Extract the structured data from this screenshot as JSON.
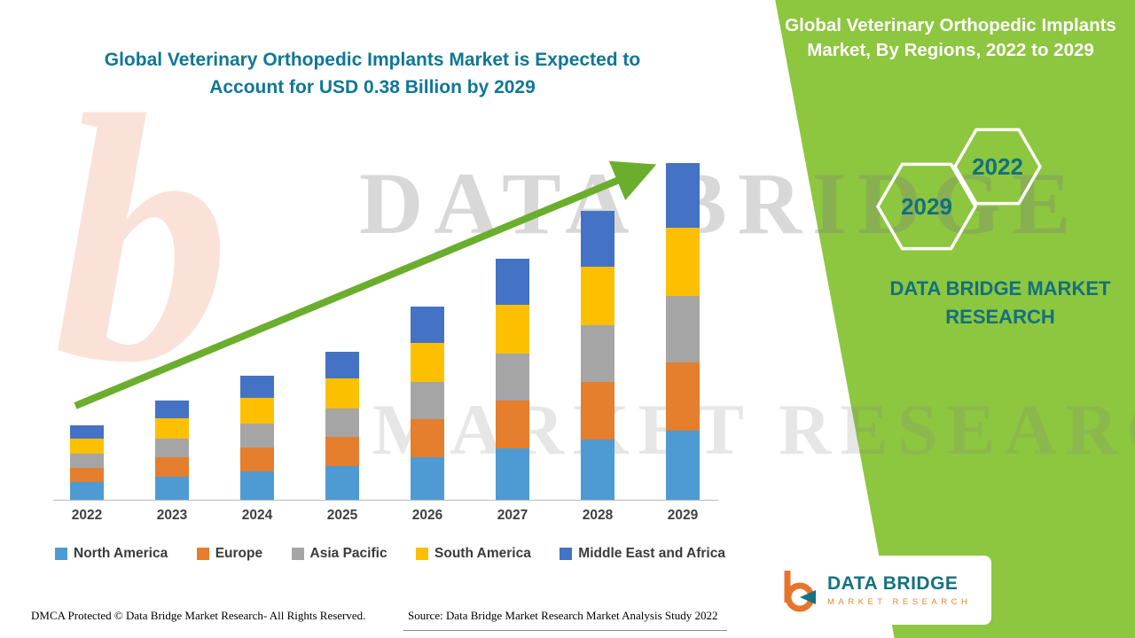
{
  "page": {
    "title_line1": "Global Veterinary Orthopedic Implants Market is Expected to",
    "title_line2": "Account for USD 0.38 Billion by 2029"
  },
  "side_panel": {
    "heading": "Global Veterinary Orthopedic Implants Market, By Regions, 2022 to 2029",
    "hexagon_left": "2029",
    "hexagon_right": "2022",
    "brand_line1": "DATA BRIDGE MARKET",
    "brand_line2": "RESEARCH",
    "bg_color": "#8dc63f",
    "accent_teal": "#12707f"
  },
  "watermark": {
    "letter_b": "b",
    "line1": "DATA BRIDGE",
    "line2": "MARKET RESEARCH"
  },
  "logo": {
    "name": "DATA BRIDGE",
    "subtitle": "MARKET RESEARCH"
  },
  "footer": {
    "dmca": "DMCA Protected © Data Bridge Market Research- All Rights Reserved.",
    "source": "Source: Data Bridge Market Research Market Analysis Study 2022"
  },
  "chart_data": {
    "type": "bar",
    "stacked": true,
    "title": "Global Veterinary Orthopedic Implants Market is Expected to Account for USD 0.38 Billion by 2029",
    "unit": "USD Billion",
    "categories": [
      "2022",
      "2023",
      "2024",
      "2025",
      "2026",
      "2027",
      "2028",
      "2029"
    ],
    "series": [
      {
        "name": "North America",
        "color": "#4e9bd4",
        "values": [
          0.02,
          0.026,
          0.032,
          0.038,
          0.048,
          0.058,
          0.068,
          0.078
        ]
      },
      {
        "name": "Europe",
        "color": "#e57e2d",
        "values": [
          0.016,
          0.022,
          0.027,
          0.033,
          0.043,
          0.054,
          0.065,
          0.077
        ]
      },
      {
        "name": "Asia Pacific",
        "color": "#a5a5a5",
        "values": [
          0.016,
          0.021,
          0.027,
          0.032,
          0.042,
          0.053,
          0.064,
          0.075
        ]
      },
      {
        "name": "South America",
        "color": "#fdc000",
        "values": [
          0.017,
          0.023,
          0.029,
          0.034,
          0.044,
          0.055,
          0.066,
          0.077
        ]
      },
      {
        "name": "Middle East and Africa",
        "color": "#4472c4",
        "values": [
          0.015,
          0.02,
          0.025,
          0.03,
          0.041,
          0.052,
          0.063,
          0.073
        ]
      }
    ],
    "totals": [
      0.084,
      0.112,
      0.14,
      0.167,
      0.218,
      0.272,
      0.326,
      0.38
    ],
    "ylim": [
      0,
      0.4
    ],
    "gridlines": false,
    "legend_position": "bottom",
    "annotation": "upward trend arrow from 2022 to 2029"
  }
}
